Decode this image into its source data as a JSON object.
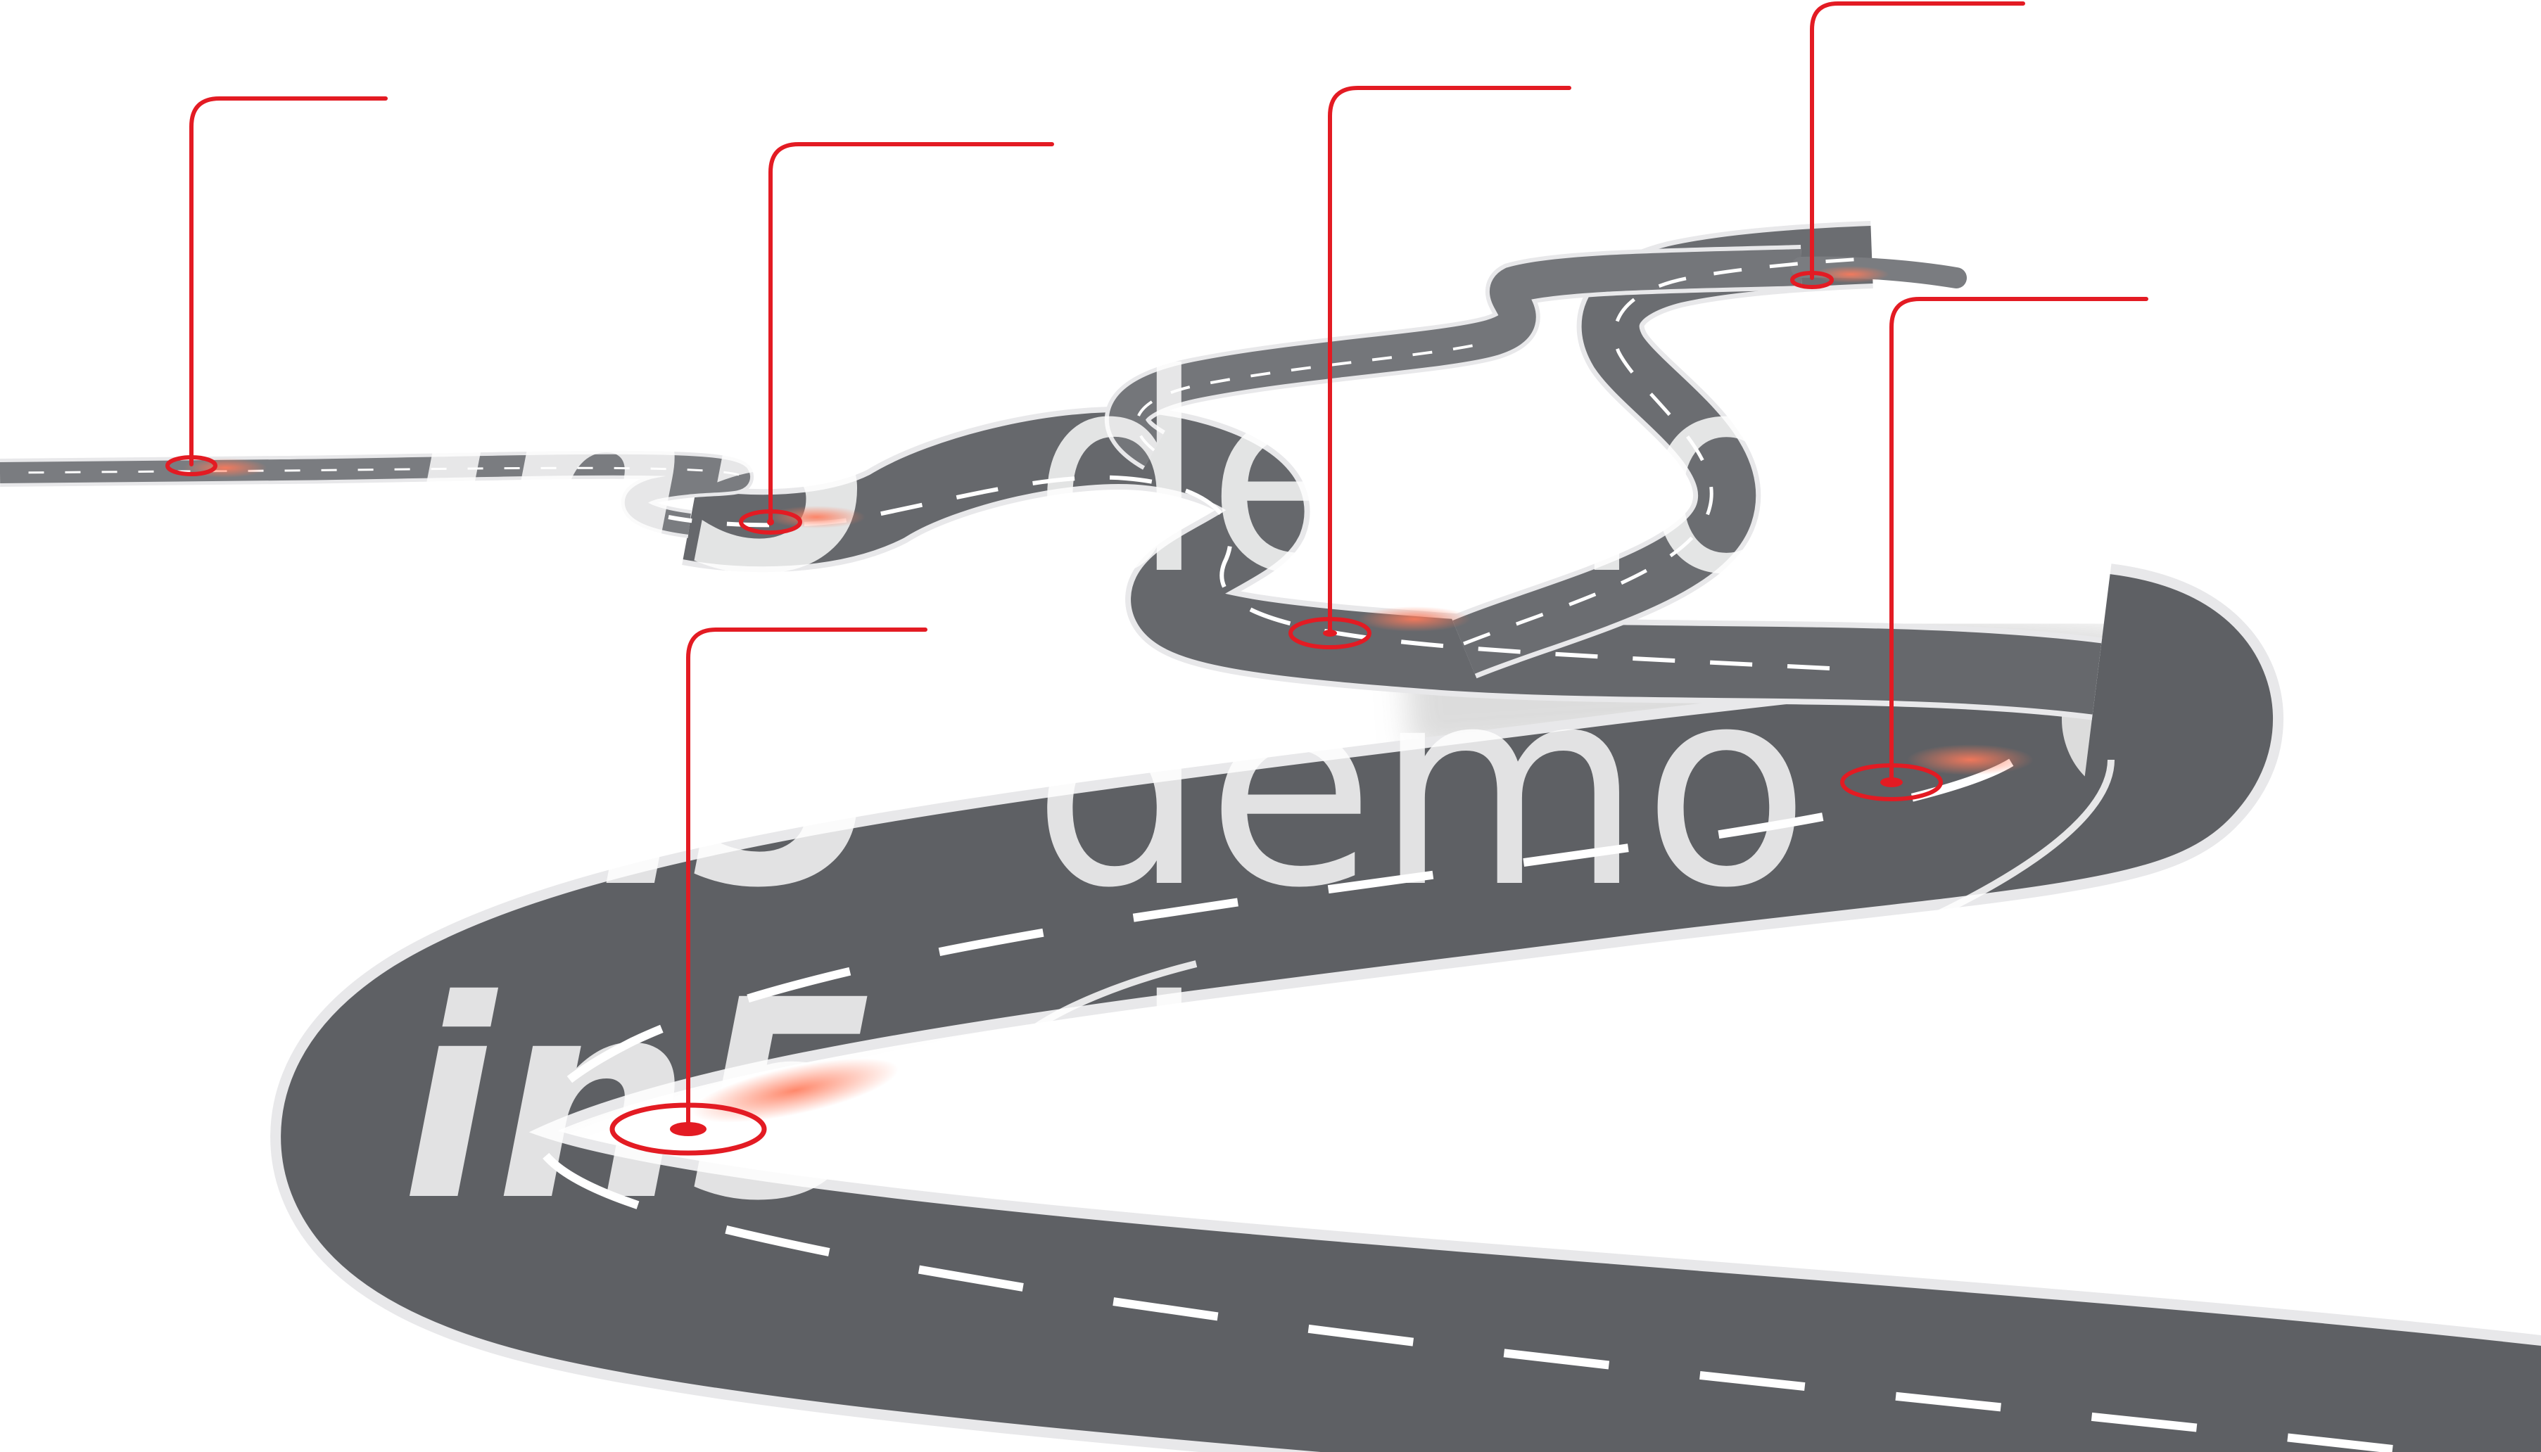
{
  "diagram": {
    "kind": "winding road roadmap with milestone markers",
    "milestone_count": 6,
    "milestones": [
      {
        "id": "m1",
        "label": ""
      },
      {
        "id": "m2",
        "label": ""
      },
      {
        "id": "m3",
        "label": ""
      },
      {
        "id": "m4",
        "label": ""
      },
      {
        "id": "m5",
        "label": ""
      },
      {
        "id": "m6",
        "label": ""
      }
    ]
  },
  "watermark": {
    "brand": "in5",
    "word": "demo",
    "repeat": 3
  },
  "colors": {
    "background": "#ffffff",
    "road_asphalt": "#5e6064",
    "road_asphalt_far": "#7a7c80",
    "road_edge": "#f4f4f4",
    "road_side": "#cfcfd1",
    "lane_marking": "#ffffff",
    "marker_red": "#e31b23",
    "marker_glow": "#ff7a5a",
    "watermark": "#ffffff"
  },
  "icons": {
    "milestone_marker": "location-pin-icon",
    "leader_line": "callout-line"
  }
}
